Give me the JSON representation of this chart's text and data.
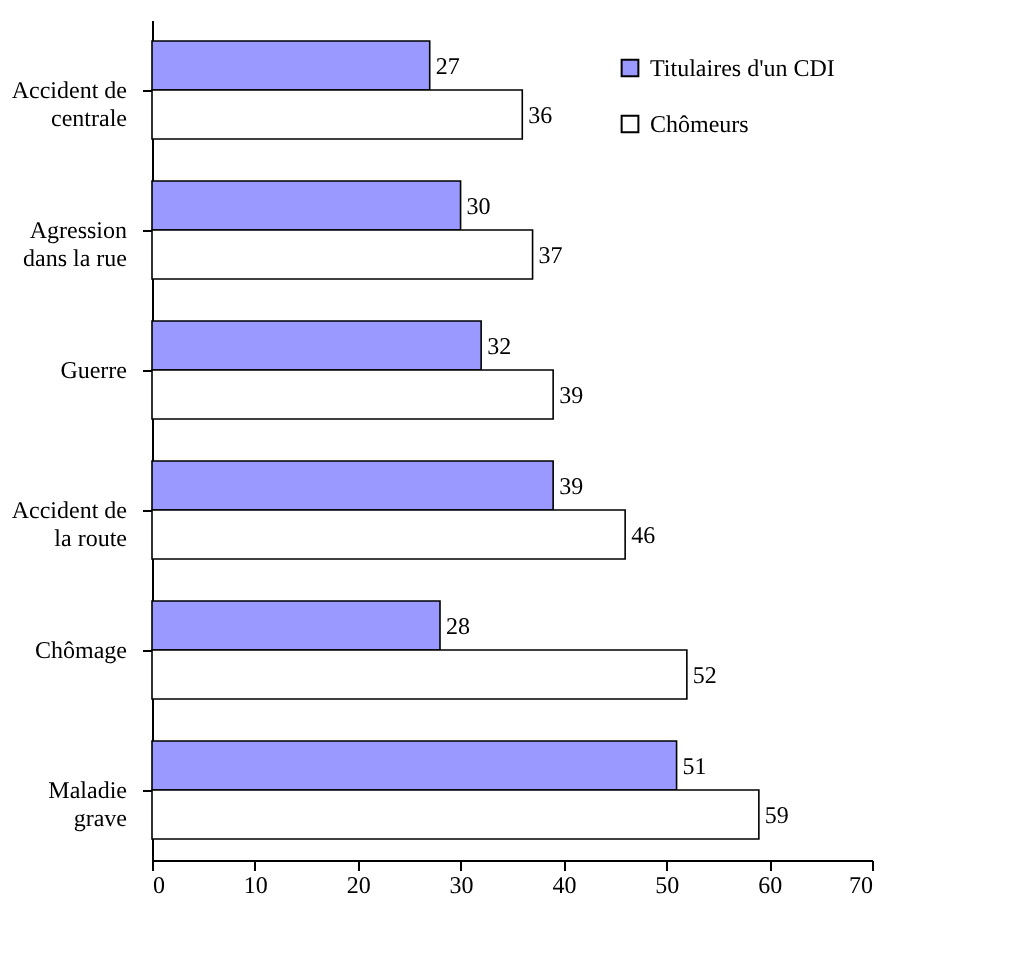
{
  "chart_data": {
    "type": "bar",
    "orientation": "horizontal",
    "categories": [
      "Accident de centrale",
      "Agression dans la rue",
      "Guerre",
      "Accident de la route",
      "Chômage",
      "Maladie grave"
    ],
    "series": [
      {
        "name": "Titulaires d'un CDI",
        "color": "#9999ff",
        "values": [
          27,
          30,
          32,
          39,
          28,
          51
        ]
      },
      {
        "name": "Chômeurs",
        "color": "#ffffff",
        "values": [
          36,
          37,
          39,
          46,
          52,
          59
        ]
      }
    ],
    "xlim": [
      0,
      70
    ],
    "xticks": [
      0,
      10,
      20,
      30,
      40,
      50,
      60,
      70
    ],
    "grid": false,
    "legend": "top right",
    "data_labels": true
  }
}
